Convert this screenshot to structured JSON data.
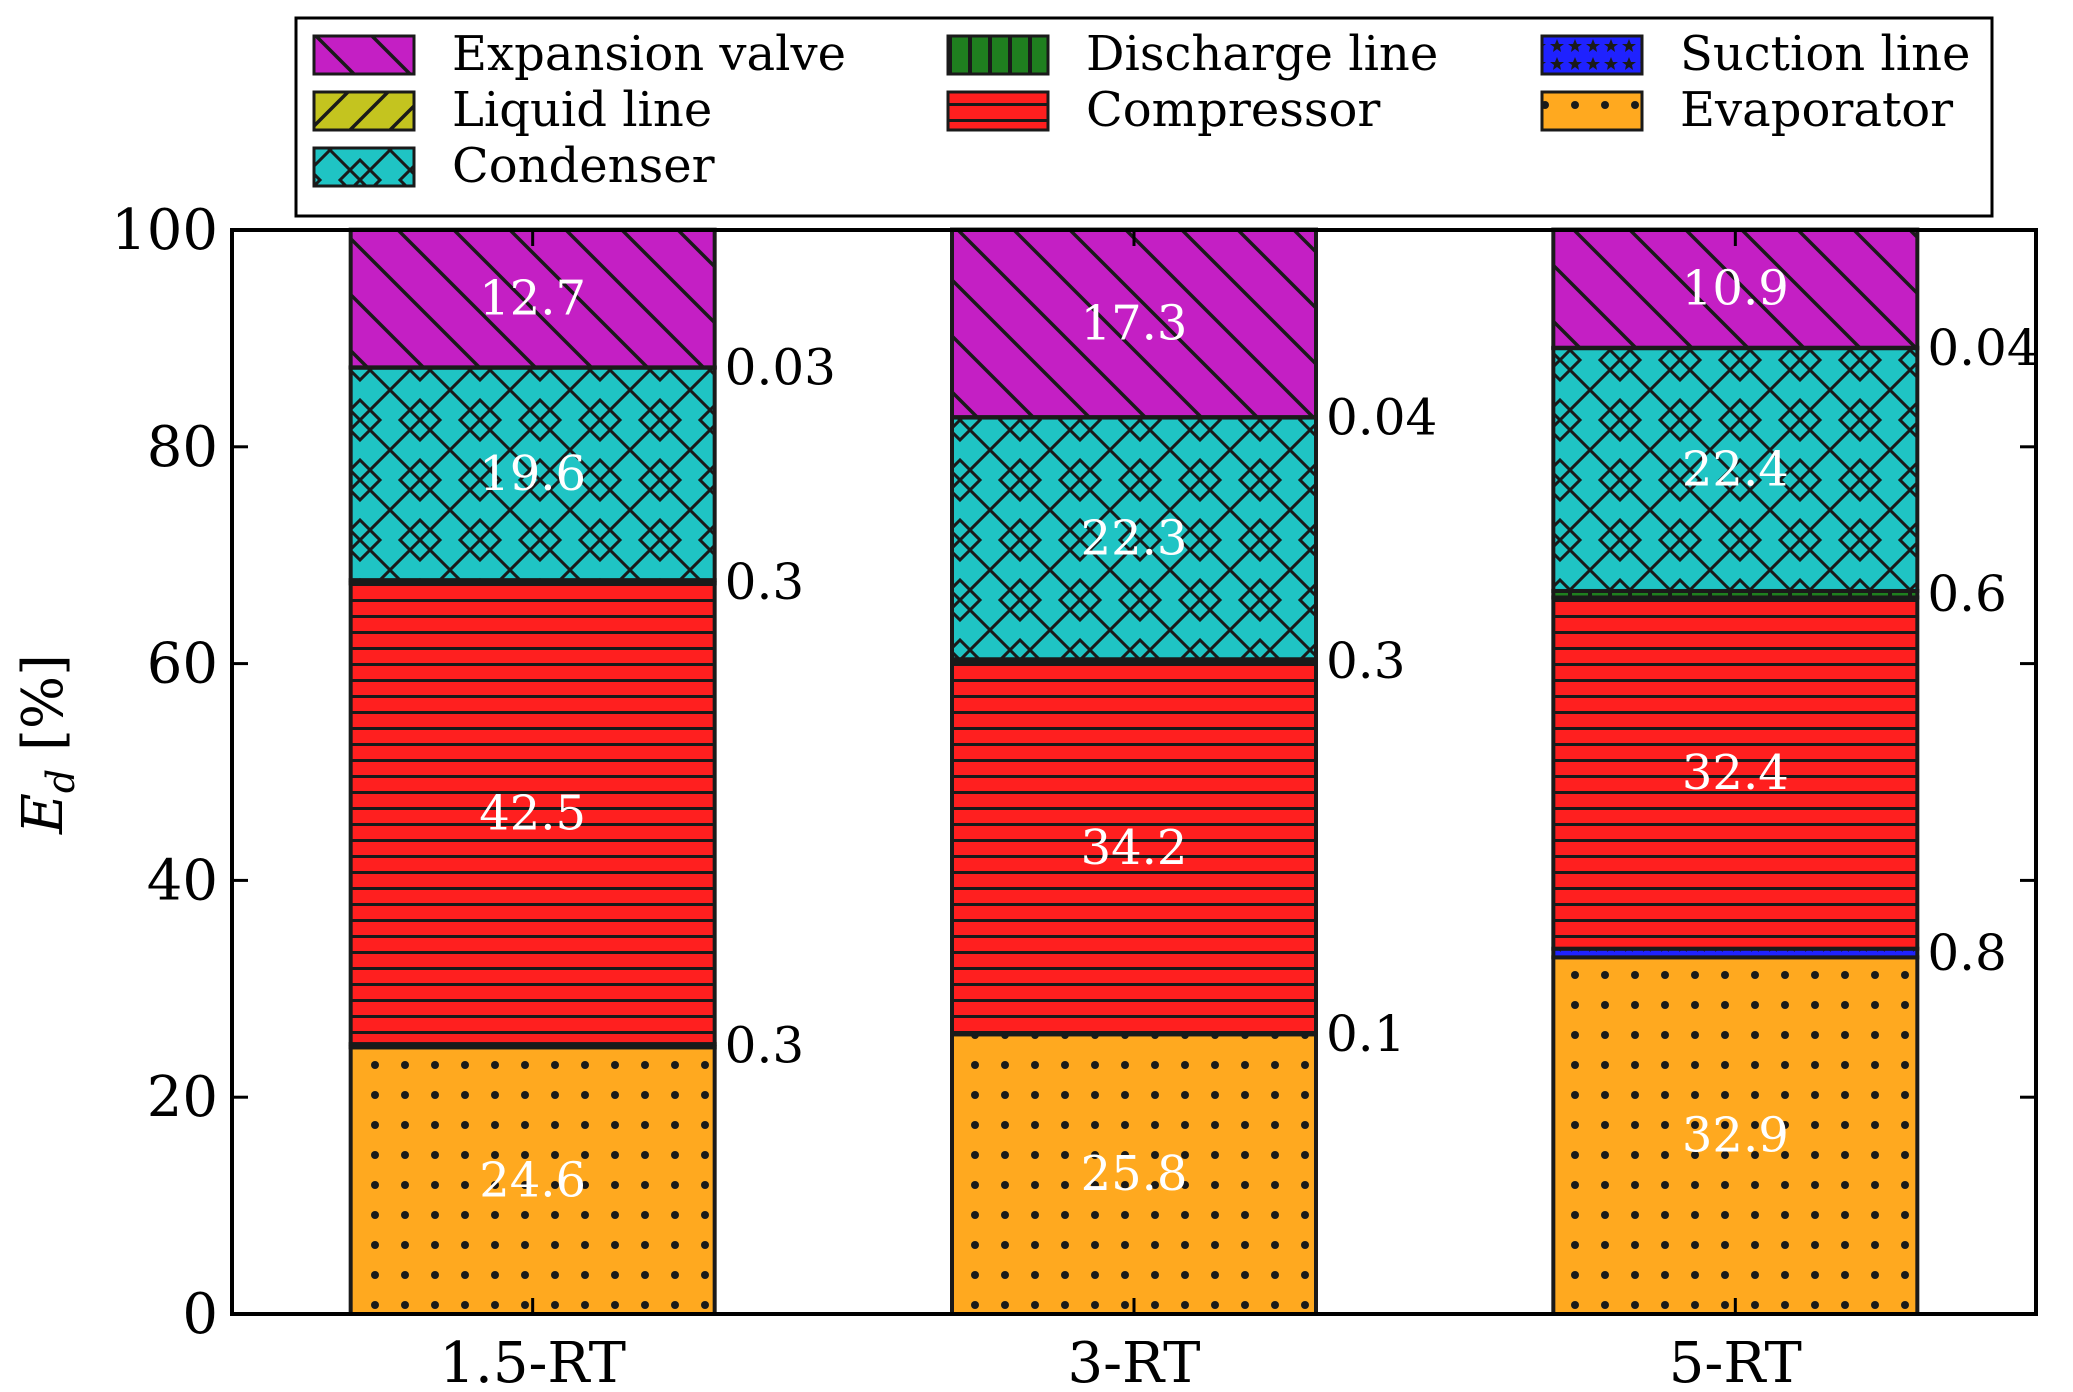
{
  "chart_data": {
    "type": "bar",
    "stacked": true,
    "categories": [
      "1.5-RT",
      "3-RT",
      "5-RT"
    ],
    "ylabel": "E_d [%]",
    "ylabel_main": "E",
    "ylabel_sub": "d",
    "ylabel_unit": " [%]",
    "ylim": [
      0,
      100
    ],
    "yticks": [
      0,
      20,
      40,
      60,
      80,
      100
    ],
    "yticks_text": [
      "0",
      "20",
      "40",
      "60",
      "80",
      "100"
    ],
    "grid": false,
    "legend_position": "top",
    "series": [
      {
        "key": "evap",
        "name": "Evaporator",
        "color": "#FFA91F",
        "pattern": "dots",
        "values": [
          24.6,
          25.8,
          32.9
        ]
      },
      {
        "key": "suct",
        "name": "Suction line",
        "color": "#1F22FF",
        "pattern": "stars",
        "values": [
          0.3,
          0.1,
          0.8
        ]
      },
      {
        "key": "comp",
        "name": "Compressor",
        "color": "#FF1F1F",
        "pattern": "hlines",
        "values": [
          42.5,
          34.2,
          32.4
        ]
      },
      {
        "key": "disc",
        "name": "Discharge line",
        "color": "#1F7F1F",
        "pattern": "vlines",
        "values": [
          0.3,
          0.3,
          0.6
        ]
      },
      {
        "key": "cond",
        "name": "Condenser",
        "color": "#1FC4C4",
        "pattern": "cross",
        "values": [
          19.6,
          22.3,
          22.4
        ]
      },
      {
        "key": "liq",
        "name": "Liquid line",
        "color": "#C4C41F",
        "pattern": "slash",
        "values": [
          0.03,
          0.04,
          0.04
        ]
      },
      {
        "key": "exp",
        "name": "Expansion valve",
        "color": "#C41FC4",
        "pattern": "backslash",
        "values": [
          12.7,
          17.3,
          10.9
        ]
      }
    ],
    "legend_order": [
      "exp",
      "disc",
      "suct",
      "liq",
      "comp",
      "evap",
      "cond"
    ],
    "segment_labels": [
      {
        "category": "1.5-RT",
        "series": "exp",
        "text": "12.7",
        "placement": "inside"
      },
      {
        "category": "1.5-RT",
        "series": "cond",
        "text": "19.6",
        "placement": "inside"
      },
      {
        "category": "1.5-RT",
        "series": "comp",
        "text": "42.5",
        "placement": "inside"
      },
      {
        "category": "1.5-RT",
        "series": "evap",
        "text": "24.6",
        "placement": "inside"
      },
      {
        "category": "1.5-RT",
        "series": "liq",
        "text": "0.03",
        "placement": "side"
      },
      {
        "category": "1.5-RT",
        "series": "disc",
        "text": "0.3",
        "placement": "side"
      },
      {
        "category": "1.5-RT",
        "series": "suct",
        "text": "0.3",
        "placement": "side"
      },
      {
        "category": "3-RT",
        "series": "exp",
        "text": "17.3",
        "placement": "inside"
      },
      {
        "category": "3-RT",
        "series": "cond",
        "text": "22.3",
        "placement": "inside"
      },
      {
        "category": "3-RT",
        "series": "comp",
        "text": "34.2",
        "placement": "inside"
      },
      {
        "category": "3-RT",
        "series": "evap",
        "text": "25.8",
        "placement": "inside"
      },
      {
        "category": "3-RT",
        "series": "liq",
        "text": "0.04",
        "placement": "side"
      },
      {
        "category": "3-RT",
        "series": "disc",
        "text": "0.3",
        "placement": "side"
      },
      {
        "category": "3-RT",
        "series": "suct",
        "text": "0.1",
        "placement": "side"
      },
      {
        "category": "5-RT",
        "series": "exp",
        "text": "10.9",
        "placement": "inside"
      },
      {
        "category": "5-RT",
        "series": "cond",
        "text": "22.4",
        "placement": "inside"
      },
      {
        "category": "5-RT",
        "series": "comp",
        "text": "32.4",
        "placement": "inside"
      },
      {
        "category": "5-RT",
        "series": "evap",
        "text": "32.9",
        "placement": "inside"
      },
      {
        "category": "5-RT",
        "series": "liq",
        "text": "0.04",
        "placement": "side"
      },
      {
        "category": "5-RT",
        "series": "disc",
        "text": "0.6",
        "placement": "side"
      },
      {
        "category": "5-RT",
        "series": "suct",
        "text": "0.8",
        "placement": "side"
      }
    ]
  }
}
